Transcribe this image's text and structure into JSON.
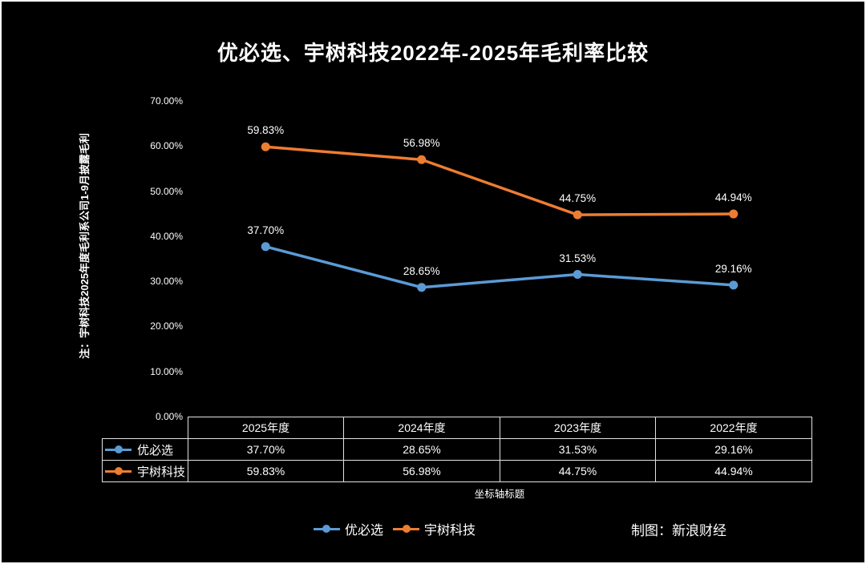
{
  "page": {
    "side_note": "注：宇树科技2025年度毛利系公司1-9月披露毛利",
    "credit": "制图：新浪财经"
  },
  "colors": {
    "background": "#000000",
    "text": "#ffffff",
    "series_ubtech": "#5B9BD5",
    "series_unitree": "#ED7D31",
    "table_border": "#e2e2e2"
  },
  "chart_data": {
    "type": "line",
    "title": "优必选、宇树科技2022年-2025年毛利率比较",
    "categories": [
      "2025年度",
      "2024年度",
      "2023年度",
      "2022年度"
    ],
    "series": [
      {
        "name": "优必选",
        "color": "#5B9BD5",
        "values": [
          37.7,
          28.65,
          31.53,
          29.16
        ],
        "labels": [
          "37.70%",
          "28.65%",
          "31.53%",
          "29.16%"
        ]
      },
      {
        "name": "宇树科技",
        "color": "#ED7D31",
        "values": [
          59.83,
          56.98,
          44.75,
          44.94
        ],
        "labels": [
          "59.83%",
          "56.98%",
          "44.75%",
          "44.94%"
        ]
      }
    ],
    "y_axis": {
      "min": 0,
      "max": 70,
      "step": 10,
      "tick_labels": [
        "0.00%",
        "10.00%",
        "20.00%",
        "30.00%",
        "40.00%",
        "50.00%",
        "60.00%",
        "70.00%"
      ]
    },
    "xlabel": "坐标轴标题",
    "ylabel": "",
    "grid": false,
    "legend_position": "bottom",
    "markers": true
  },
  "table": {
    "header": [
      "",
      "2025年度",
      "2024年度",
      "2023年度",
      "2022年度"
    ],
    "rows": [
      {
        "label": "优必选",
        "values": [
          "37.70%",
          "28.65%",
          "31.53%",
          "29.16%"
        ]
      },
      {
        "label": "宇树科技",
        "values": [
          "59.83%",
          "56.98%",
          "44.75%",
          "44.94%"
        ]
      }
    ]
  }
}
